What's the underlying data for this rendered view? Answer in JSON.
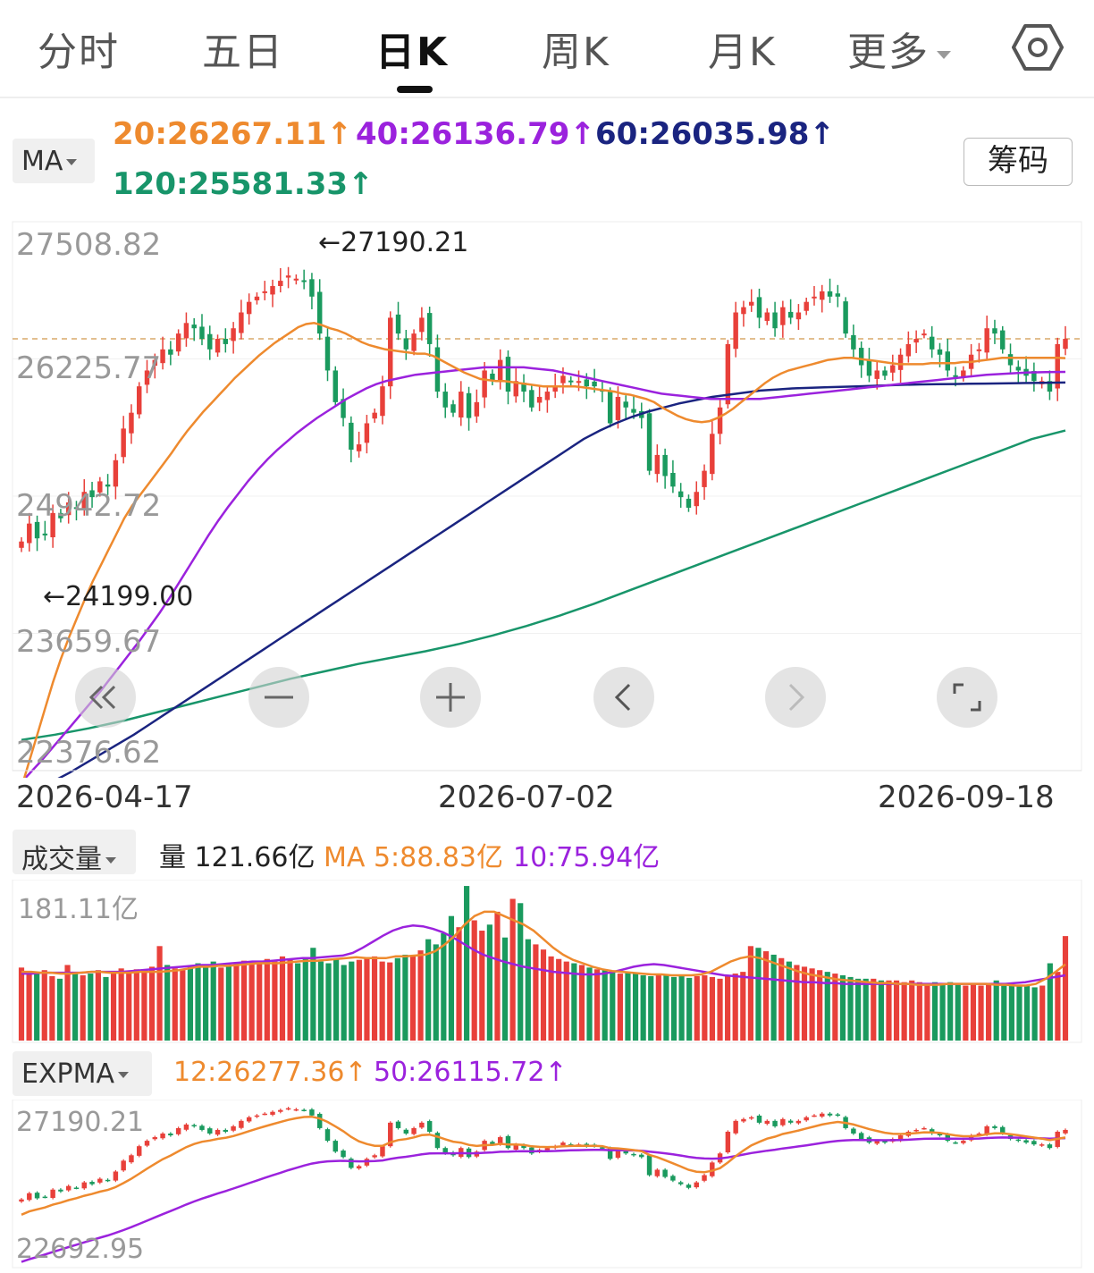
{
  "tabs": [
    {
      "label": "分时"
    },
    {
      "label": "五日"
    },
    {
      "label": "日K"
    },
    {
      "label": "周K"
    },
    {
      "label": "月K"
    },
    {
      "label": "更多"
    }
  ],
  "colors": {
    "up": "#e8403a",
    "down": "#1a9a5e",
    "ma20": "#ee8a2e",
    "ma40": "#9b22dd",
    "ma60": "#1a2480",
    "ma120": "#18956a"
  },
  "ma_legend": {
    "dropdown": "MA",
    "ma20": "20:26267.11↑",
    "ma40": "40:26136.79↑",
    "ma60": "60:26035.98↑",
    "ma120": "120:25581.33↑",
    "chips_button": "筹码"
  },
  "main": {
    "y_labels": [
      "27508.82",
      "26225.77",
      "24942.72",
      "23659.67",
      "22376.62"
    ],
    "high_label": "←27190.21",
    "low_label": "←24199.00",
    "x_labels": [
      "2026-04-17",
      "2026-07-02",
      "2026-09-18"
    ]
  },
  "controls": [
    {
      "name": "scroll-left",
      "icon": "double-chevron-left-icon"
    },
    {
      "name": "zoom-out",
      "icon": "minus-icon"
    },
    {
      "name": "zoom-in",
      "icon": "plus-icon"
    },
    {
      "name": "prev",
      "icon": "chevron-left-icon"
    },
    {
      "name": "next",
      "icon": "chevron-right-icon"
    },
    {
      "name": "fullscreen",
      "icon": "fullscreen-icon"
    }
  ],
  "volume": {
    "dropdown": "成交量",
    "current": "量 121.66亿",
    "ma5": "MA 5:88.83亿",
    "ma10": "10:75.94亿",
    "max_label": "181.11亿"
  },
  "expma": {
    "dropdown": "EXPMA",
    "ema12": "12:26277.36↑",
    "ema50": "50:26115.72↑",
    "y_top": "27190.21",
    "y_bottom": "22692.95"
  },
  "chart_data": {
    "type": "candlestick",
    "x_start": "2026-04-17",
    "x_end": "2026-09-18",
    "ylim": [
      22376.62,
      27508.82
    ],
    "close": [
      24530,
      24700,
      24560,
      24600,
      24800,
      24750,
      24900,
      24850,
      25000,
      24950,
      25100,
      25050,
      25300,
      25600,
      25750,
      26000,
      26150,
      26250,
      26350,
      26300,
      26500,
      26600,
      26550,
      26450,
      26350,
      26450,
      26400,
      26550,
      26700,
      26800,
      26850,
      26900,
      26950,
      27000,
      27050,
      27020,
      27000,
      26850,
      26500,
      26150,
      25850,
      25700,
      25400,
      25450,
      25650,
      25750,
      26000,
      26650,
      26500,
      26350,
      26500,
      26650,
      26400,
      25950,
      25800,
      25750,
      25950,
      25700,
      25850,
      26150,
      26050,
      26250,
      25950,
      26050,
      25950,
      25800,
      25900,
      25950,
      26000,
      26100,
      26050,
      26050,
      26000,
      26000,
      25950,
      25650,
      25900,
      25800,
      25750,
      25700,
      25200,
      25350,
      25150,
      25050,
      24950,
      24850,
      25000,
      25200,
      25550,
      25800,
      26400,
      26700,
      26750,
      26800,
      26650,
      26700,
      26550,
      26750,
      26650,
      26700,
      26800,
      26850,
      26900,
      26850,
      26850,
      26500,
      26350,
      26200,
      26100,
      26150,
      26100,
      26200,
      26300,
      26400,
      26450,
      26500,
      26350,
      26300,
      26150,
      26100,
      26150,
      26300,
      26350,
      26550,
      26500,
      26350,
      26200,
      26150,
      26100,
      26050,
      26050,
      25950,
      26400,
      26450
    ],
    "ma20": [
      22200,
      22450,
      22700,
      22950,
      23200,
      23420,
      23620,
      23800,
      23980,
      24150,
      24300,
      24450,
      24600,
      24750,
      24870,
      24970,
      25070,
      25170,
      25270,
      25370,
      25480,
      25580,
      25670,
      25760,
      25840,
      25920,
      26000,
      26080,
      26150,
      26220,
      26290,
      26350,
      26410,
      26460,
      26510,
      26560,
      26590,
      26600,
      26580,
      26550,
      26530,
      26500,
      26460,
      26420,
      26390,
      26370,
      26350,
      26340,
      26330,
      26320,
      26310,
      26310,
      26290,
      26250,
      26210,
      26170,
      26130,
      26100,
      26070,
      26060,
      26050,
      26050,
      26040,
      26030,
      26020,
      26010,
      26000,
      26000,
      26000,
      26000,
      26000,
      25990,
      25980,
      25970,
      25960,
      25950,
      25930,
      25920,
      25900,
      25880,
      25850,
      25800,
      25760,
      25720,
      25690,
      25670,
      25660,
      25670,
      25700,
      25740,
      25790,
      25850,
      25910,
      25970,
      26030,
      26080,
      26120,
      26150,
      26170,
      26190,
      26210,
      26230,
      26250,
      26260,
      26270,
      26270,
      26260,
      26250,
      26240,
      26230,
      26220,
      26210,
      26210,
      26210,
      26210,
      26220,
      26220,
      26220,
      26220,
      26230,
      26230,
      26240,
      26250,
      26260,
      26270,
      26270,
      26270,
      26270,
      26270,
      26270,
      26270,
      26270,
      26267
    ],
    "ma40": [
      22250,
      22350,
      22450,
      22560,
      22670,
      22780,
      22890,
      23000,
      23110,
      23230,
      23350,
      23470,
      23590,
      23720,
      23850,
      23990,
      24140,
      24290,
      24440,
      24590,
      24730,
      24860,
      24980,
      25100,
      25210,
      25310,
      25400,
      25480,
      25560,
      25630,
      25700,
      25760,
      25820,
      25880,
      25930,
      25980,
      26020,
      26050,
      26070,
      26090,
      26110,
      26120,
      26130,
      26140,
      26150,
      26160,
      26170,
      26180,
      26180,
      26180,
      26180,
      26180,
      26170,
      26160,
      26150,
      26130,
      26110,
      26090,
      26070,
      26050,
      26030,
      26010,
      25990,
      25970,
      25950,
      25930,
      25920,
      25910,
      25900,
      25890,
      25880,
      25880,
      25880,
      25880,
      25880,
      25880,
      25890,
      25900,
      25910,
      25920,
      25930,
      25940,
      25950,
      25960,
      25970,
      25980,
      25990,
      26000,
      26010,
      26020,
      26030,
      26040,
      26050,
      26060,
      26070,
      26080,
      26090,
      26100,
      26110,
      26115,
      26120,
      26125,
      26130,
      26133,
      26135,
      26136,
      26137
    ],
    "ma60": [
      22100,
      22180,
      22260,
      22340,
      22430,
      22520,
      22610,
      22700,
      22800,
      22900,
      23000,
      23100,
      23200,
      23300,
      23400,
      23500,
      23600,
      23700,
      23800,
      23900,
      24000,
      24100,
      24200,
      24300,
      24400,
      24500,
      24600,
      24700,
      24800,
      24900,
      25000,
      25100,
      25200,
      25300,
      25400,
      25500,
      25580,
      25650,
      25710,
      25760,
      25800,
      25840,
      25870,
      25900,
      25920,
      25940,
      25960,
      25970,
      25980,
      25985,
      25990,
      25995,
      26000,
      26005,
      26010,
      26015,
      26018,
      26020,
      26022,
      26024,
      26026,
      26028,
      26030,
      26032,
      26034,
      26036
    ],
    "ma120": [
      22650,
      22700,
      22760,
      22830,
      22910,
      22990,
      23070,
      23150,
      23230,
      23300,
      23370,
      23430,
      23490,
      23560,
      23640,
      23730,
      23830,
      23940,
      24060,
      24180,
      24300,
      24420,
      24540,
      24660,
      24780,
      24900,
      25020,
      25140,
      25260,
      25380,
      25500,
      25581
    ],
    "volume": {
      "max": 181.11,
      "unit": "亿",
      "values": [
        85,
        80,
        78,
        82,
        75,
        72,
        88,
        80,
        76,
        78,
        82,
        74,
        80,
        84,
        79,
        83,
        81,
        86,
        110,
        88,
        84,
        82,
        86,
        90,
        88,
        92,
        85,
        87,
        90,
        93,
        91,
        89,
        95,
        92,
        98,
        94,
        90,
        96,
        108,
        92,
        90,
        95,
        88,
        92,
        94,
        96,
        98,
        92,
        91,
        96,
        100,
        98,
        105,
        118,
        112,
        125,
        145,
        132,
        180,
        140,
        128,
        135,
        150,
        120,
        165,
        160,
        118,
        112,
        106,
        98,
        95,
        92,
        90,
        88,
        85,
        83,
        82,
        80,
        78,
        80,
        78,
        76,
        75,
        78,
        76,
        74,
        75,
        73,
        75,
        76,
        74,
        72,
        75,
        78,
        80,
        110,
        108,
        104,
        100,
        96,
        92,
        88,
        86,
        84,
        82,
        80,
        78,
        76,
        74,
        72,
        72,
        72,
        70,
        70,
        70,
        68,
        70,
        68,
        66,
        68,
        66,
        68,
        66,
        64,
        66,
        64,
        66,
        70,
        65,
        64,
        65,
        65,
        62,
        64,
        90,
        80,
        121.66
      ],
      "ma5": [
        80,
        80,
        79,
        79,
        78,
        78,
        79,
        80,
        80,
        79,
        79,
        79,
        80,
        80,
        80,
        81,
        82,
        84,
        86,
        86,
        87,
        87,
        88,
        89,
        90,
        90,
        90,
        91,
        92,
        93,
        93,
        94,
        95,
        96,
        97,
        96,
        96,
        96,
        98,
        98,
        99,
        100,
        104,
        112,
        122,
        135,
        145,
        150,
        150,
        145,
        140,
        135,
        128,
        118,
        108,
        100,
        94,
        90,
        86,
        83,
        81,
        80,
        79,
        78,
        77,
        77,
        76,
        76,
        76,
        77,
        80,
        86,
        92,
        96,
        98,
        96,
        92,
        88,
        84,
        80,
        77,
        75,
        73,
        71,
        70,
        69,
        68,
        67,
        67,
        66,
        66,
        65,
        65,
        65,
        66,
        66,
        66,
        66,
        66,
        65,
        65,
        64,
        64,
        66,
        72,
        80,
        88.83
      ],
      "ma10": [
        78,
        78,
        79,
        79,
        79,
        79,
        79,
        80,
        80,
        80,
        80,
        81,
        82,
        83,
        84,
        85,
        86,
        87,
        88,
        88,
        89,
        90,
        91,
        92,
        92,
        93,
        94,
        95,
        96,
        96,
        97,
        98,
        99,
        102,
        108,
        115,
        122,
        128,
        132,
        134,
        133,
        130,
        126,
        120,
        113,
        106,
        100,
        96,
        92,
        89,
        86,
        84,
        82,
        80,
        79,
        78,
        77,
        77,
        78,
        80,
        83,
        86,
        88,
        89,
        88,
        86,
        84,
        82,
        80,
        78,
        76,
        75,
        74,
        73,
        72,
        71,
        70,
        69,
        68,
        68,
        67,
        67,
        66,
        66,
        66,
        66,
        66,
        66,
        66,
        66,
        66,
        66,
        66,
        66,
        66,
        66,
        66,
        66,
        66,
        67,
        68,
        70,
        72,
        74,
        75.94
      ]
    },
    "expma": {
      "ylim": [
        22692.95,
        27190.21
      ],
      "ema12": 26277.36,
      "ema50": 26115.72
    }
  }
}
